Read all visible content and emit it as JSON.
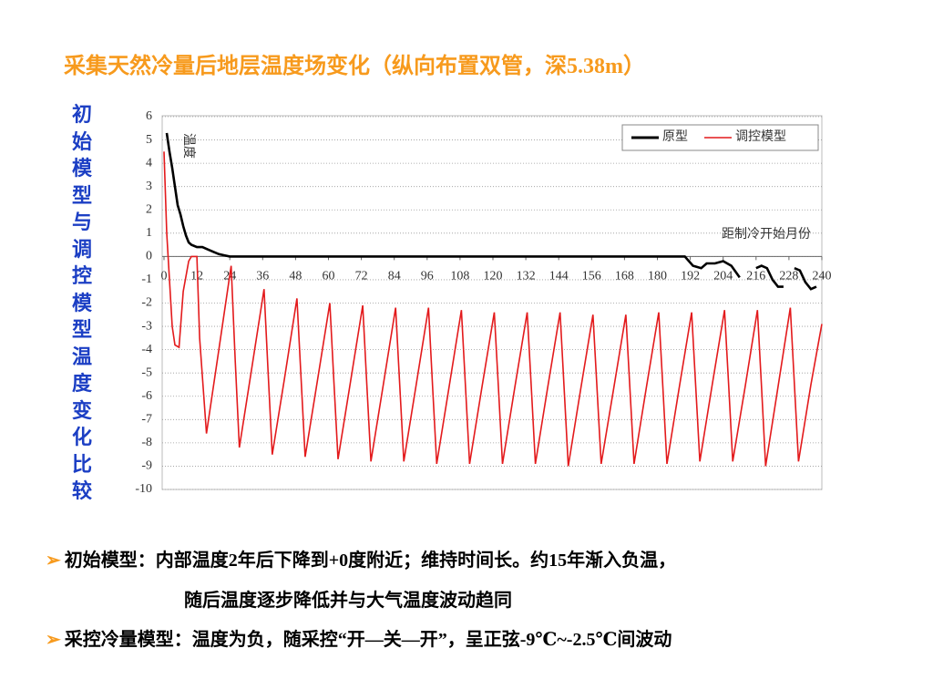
{
  "header": {
    "title": "采集天然冷量后地层温度场变化（纵向布置双管，深5.38m）",
    "side_label": "初始模型与调控模型温度变化比较"
  },
  "chart_data": {
    "type": "line",
    "y_label": "温度",
    "x_label": "距制冷开始月份",
    "xlim": [
      0,
      240
    ],
    "xticks": [
      0,
      12,
      24,
      36,
      48,
      60,
      72,
      84,
      96,
      108,
      120,
      132,
      144,
      156,
      168,
      180,
      192,
      204,
      216,
      228,
      240
    ],
    "ylim": [
      -10,
      6
    ],
    "yticks": [
      6,
      5,
      4,
      3,
      2,
      1,
      0,
      -1,
      -2,
      -3,
      -4,
      -5,
      -6,
      -7,
      -8,
      -9,
      -10
    ],
    "grid": true,
    "legend": "top-right",
    "series": [
      {
        "name": "原型",
        "color": "#000000",
        "x": [
          1,
          2,
          3,
          4,
          5,
          6,
          7,
          8,
          9,
          10,
          12,
          14,
          16,
          18,
          20,
          22,
          24,
          190,
          193,
          196,
          198,
          201,
          204,
          207,
          210,
          213,
          216,
          218,
          220,
          222,
          224,
          226,
          228,
          230,
          232,
          234,
          236,
          238
        ],
        "values": [
          5.3,
          4.5,
          3.8,
          3,
          2.2,
          1.8,
          1.3,
          0.9,
          0.6,
          0.5,
          0.4,
          0.4,
          0.3,
          0.2,
          0.1,
          0.05,
          0,
          0,
          -0.4,
          -0.5,
          -0.3,
          -0.3,
          -0.2,
          -0.4,
          -0.9,
          null,
          -0.5,
          -0.4,
          -0.5,
          -1,
          -1.3,
          -1.3,
          null,
          -0.5,
          -0.6,
          -1.1,
          -1.4,
          -1.3
        ]
      },
      {
        "name": "调控模型",
        "color": "#e31a1c",
        "x": [
          0,
          1,
          2,
          3,
          4,
          5.5,
          7,
          9,
          10,
          12,
          13,
          15.5,
          20,
          24.5,
          26,
          27.5,
          32,
          36.5,
          38,
          39.5,
          44,
          48.5,
          50,
          51.5,
          56,
          60.5,
          62,
          63.5,
          68,
          72.5,
          74,
          75.5,
          80,
          84.5,
          86,
          87.5,
          92,
          96.5,
          98,
          99.5,
          104,
          108.5,
          110,
          111.5,
          116,
          120.5,
          122,
          123.5,
          128,
          132.5,
          134,
          135.5,
          140,
          144.5,
          146,
          147.5,
          152,
          156.5,
          158,
          159.5,
          164,
          168.5,
          170,
          171.5,
          176,
          180.5,
          182,
          183.5,
          188,
          192.5,
          194,
          195.5,
          200,
          204.5,
          206,
          207.5,
          212,
          216.5,
          218,
          219.5,
          224,
          228.5,
          230,
          231.5,
          236,
          240
        ],
        "values": [
          4.5,
          1,
          -1,
          -3,
          -3.8,
          -3.9,
          -1.5,
          -0.2,
          0,
          0,
          -3.5,
          -7.6,
          -4,
          -0.4,
          -4.5,
          -8.2,
          -4.8,
          -1.4,
          -5,
          -8.5,
          -5.2,
          -1.8,
          -5.2,
          -8.6,
          -5.3,
          -2.0,
          -5.4,
          -8.7,
          -5.4,
          -2.1,
          -5.5,
          -8.8,
          -5.5,
          -2.2,
          -5.5,
          -8.8,
          -5.5,
          -2.2,
          -5.6,
          -8.9,
          -5.6,
          -2.3,
          -5.6,
          -8.9,
          -5.6,
          -2.4,
          -5.6,
          -8.9,
          -5.6,
          -2.4,
          -5.6,
          -8.9,
          -5.6,
          -2.4,
          -5.7,
          -9.0,
          -5.7,
          -2.5,
          -5.7,
          -8.9,
          -5.7,
          -2.5,
          -5.7,
          -8.9,
          -5.6,
          -2.4,
          -5.6,
          -8.9,
          -5.6,
          -2.4,
          -5.6,
          -8.8,
          -5.5,
          -2.3,
          -5.5,
          -8.8,
          -5.6,
          -2.3,
          -5.6,
          -9.0,
          -5.6,
          -2.2,
          -5.5,
          -8.8,
          -5.5,
          -2.9
        ]
      }
    ]
  },
  "notes": {
    "bullet1_line1": "初始模型：内部温度2年后下降到+0度附近；维持时间长。约15年渐入负温，",
    "bullet1_line2": "随后温度逐步降低并与大气温度波动趋同",
    "bullet2": "采控冷量模型：温度为负，随采控“开—关—开”，呈正弦-9℃~-2.5℃间波动"
  }
}
